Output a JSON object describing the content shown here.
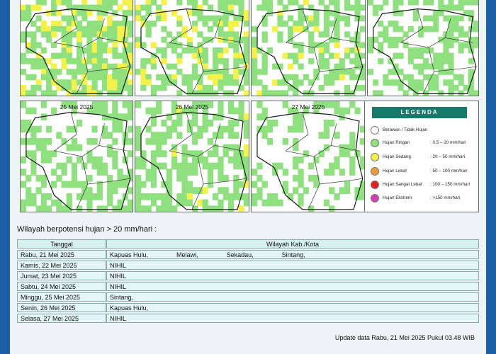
{
  "colors": {
    "page_bg": "#eef3f5",
    "frame": "#1b63a8",
    "legend_header": "#157a6a",
    "light_rain": "#8fe07f",
    "moderate_rain": "#f4f24a",
    "heavy_rain": "#f09a3a",
    "very_heavy_rain": "#e0201b",
    "extreme_rain": "#d63fb3"
  },
  "maps": [
    {
      "date": "",
      "light_rain_coverage": 0.75,
      "moderate_rain_coverage": 0.18
    },
    {
      "date": "",
      "light_rain_coverage": 0.6,
      "moderate_rain_coverage": 0.15
    },
    {
      "date": "",
      "light_rain_coverage": 0.45,
      "moderate_rain_coverage": 0.05
    },
    {
      "date": "",
      "light_rain_coverage": 0.5,
      "moderate_rain_coverage": 0.0
    },
    {
      "date": "25 Mei 2025",
      "light_rain_coverage": 0.45,
      "moderate_rain_coverage": 0.0
    },
    {
      "date": "26 Mei 2025",
      "light_rain_coverage": 0.55,
      "moderate_rain_coverage": 0.03
    },
    {
      "date": "27 Mei 2025",
      "light_rain_coverage": 0.35,
      "moderate_rain_coverage": 0.0
    }
  ],
  "legend": {
    "title": "LEGENDA",
    "items": [
      {
        "label": "Berawan / Tidak Hujan",
        "range": "",
        "color": "#ffffff"
      },
      {
        "label": "Hujan Ringan",
        "range": ": 0.5 – 20 mm/hari",
        "color": "#8fe07f"
      },
      {
        "label": "Hujan Sedang",
        "range": ": 20 – 50 mm/hari",
        "color": "#f4f24a"
      },
      {
        "label": "Hujan Lebat",
        "range": ": 50 – 100 mm/hari",
        "color": "#f09a3a"
      },
      {
        "label": "Hujan Sangat Lebat",
        "range": ": 100 – 150 mm/hari",
        "color": "#e0201b"
      },
      {
        "label": "Hujan Ekstrem",
        "range": ": >150 mm/hari",
        "color": "#d63fb3"
      }
    ]
  },
  "section_title": "Wilayah berpotensi hujan > 20 mm/hari :",
  "table": {
    "headers": [
      "Tanggal",
      "Wilayah Kab./Kota"
    ],
    "rows": [
      {
        "date": "Rabu, 21 Mei 2025",
        "regions": [
          "Kapuas Hulu,",
          "Melawi,",
          "Sekadau,",
          "Sintang,"
        ]
      },
      {
        "date": "Kamis, 22 Mei 2025",
        "regions": [
          "NIHIL"
        ]
      },
      {
        "date": "Jumat, 23 Mei 2025",
        "regions": [
          "NIHIL"
        ]
      },
      {
        "date": "Sabtu, 24 Mei 2025",
        "regions": [
          "NIHIL"
        ]
      },
      {
        "date": "Minggu, 25 Mei 2025",
        "regions": [
          "Sintang,"
        ]
      },
      {
        "date": "Senin, 26 Mei 2025",
        "regions": [
          "Kapuas Hulu,"
        ]
      },
      {
        "date": "Selasa, 27 Mei 2025",
        "regions": [
          "NIHIL"
        ]
      }
    ]
  },
  "update_note": "Update data Rabu, 21 Mei 2025 Pukul 03.48 WIB"
}
